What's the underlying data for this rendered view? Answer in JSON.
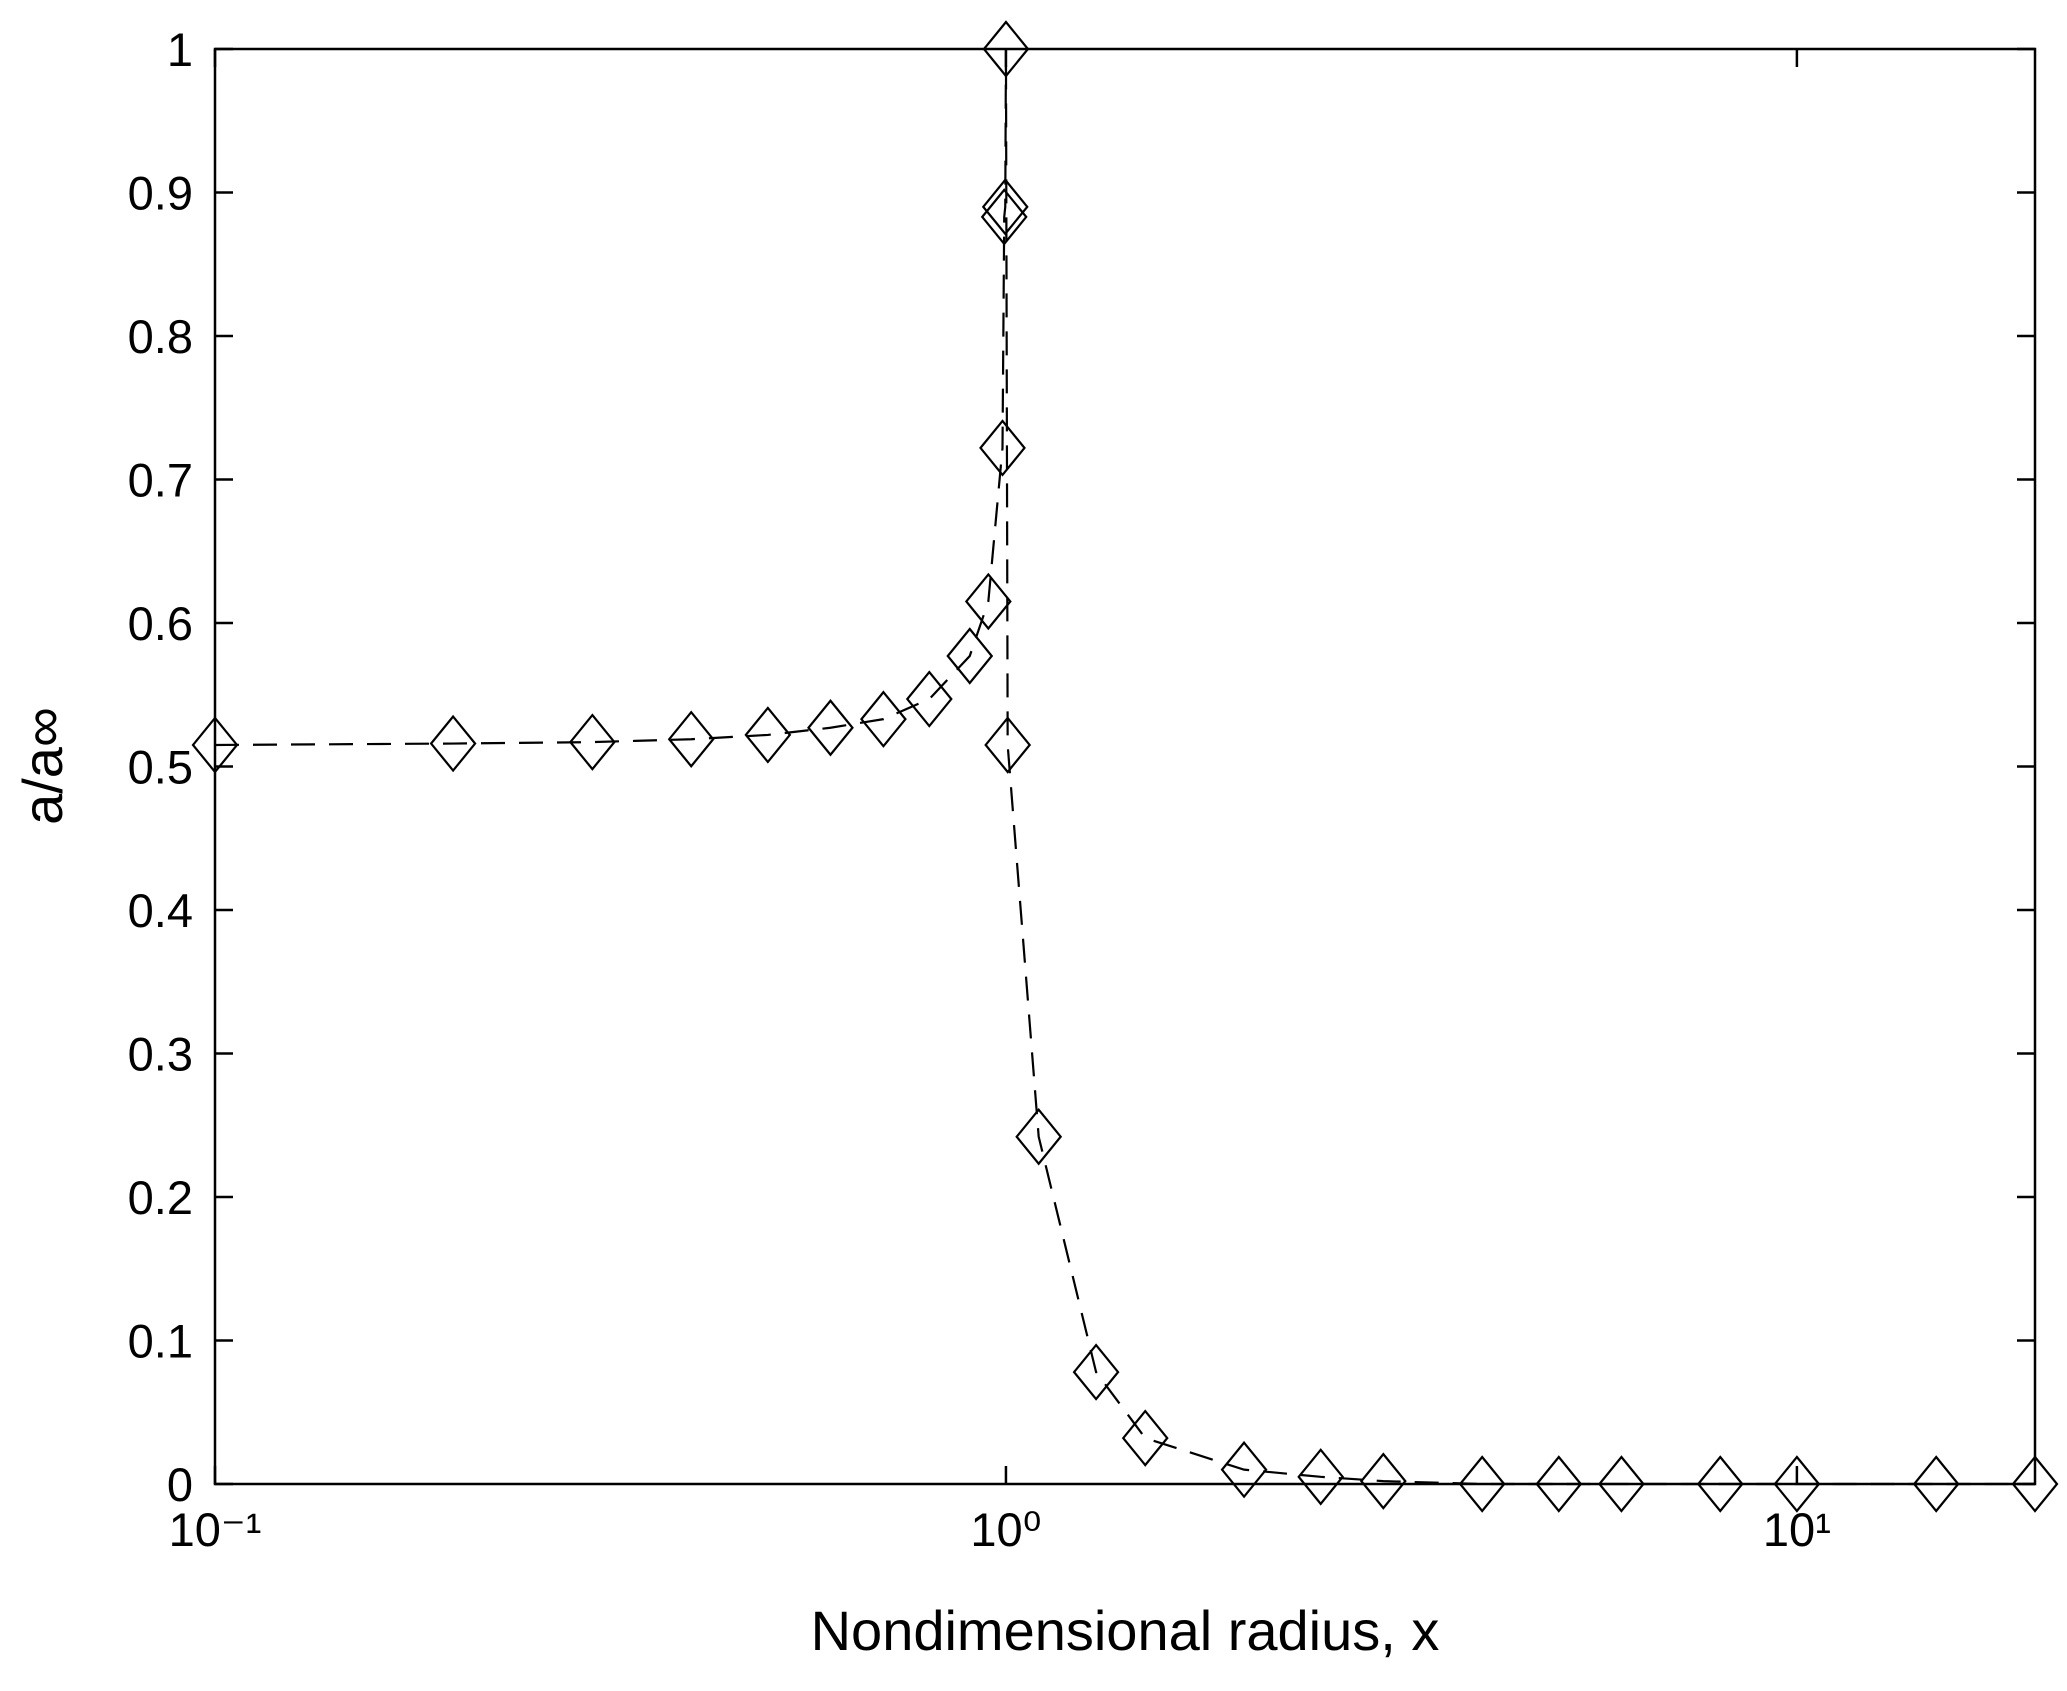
{
  "chart_data": {
    "type": "line",
    "xlabel": "Nondimensional radius, x",
    "ylabel": "a/a∞",
    "xscale": "log",
    "xlim": [
      0.1,
      20
    ],
    "ylim": [
      0,
      1
    ],
    "xticks": [
      {
        "value": 0.1,
        "label": "10⁻¹"
      },
      {
        "value": 1,
        "label": "10⁰"
      },
      {
        "value": 10,
        "label": "10¹"
      }
    ],
    "yticks": [
      0,
      0.1,
      0.2,
      0.3,
      0.4,
      0.5,
      0.6,
      0.7,
      0.8,
      0.9,
      1
    ],
    "grid": false,
    "series": [
      {
        "color": "#000000",
        "line_style": "dashed",
        "marker": "diamond",
        "x": [
          0.1,
          0.2,
          0.3,
          0.4,
          0.5,
          0.6,
          0.7,
          0.8,
          0.9,
          0.95,
          0.99,
          0.995,
          0.998,
          1.0,
          1.005,
          1.1,
          1.3,
          1.5,
          2,
          2.5,
          3,
          4,
          5,
          6,
          8,
          10,
          15,
          20
        ],
        "values": [
          0.515,
          0.516,
          0.517,
          0.519,
          0.522,
          0.527,
          0.533,
          0.547,
          0.577,
          0.615,
          0.722,
          0.883,
          0.89,
          1.0,
          0.515,
          0.242,
          0.078,
          0.032,
          0.01,
          0.005,
          0.002,
          0,
          0,
          0,
          0,
          0,
          0,
          0
        ]
      }
    ]
  }
}
